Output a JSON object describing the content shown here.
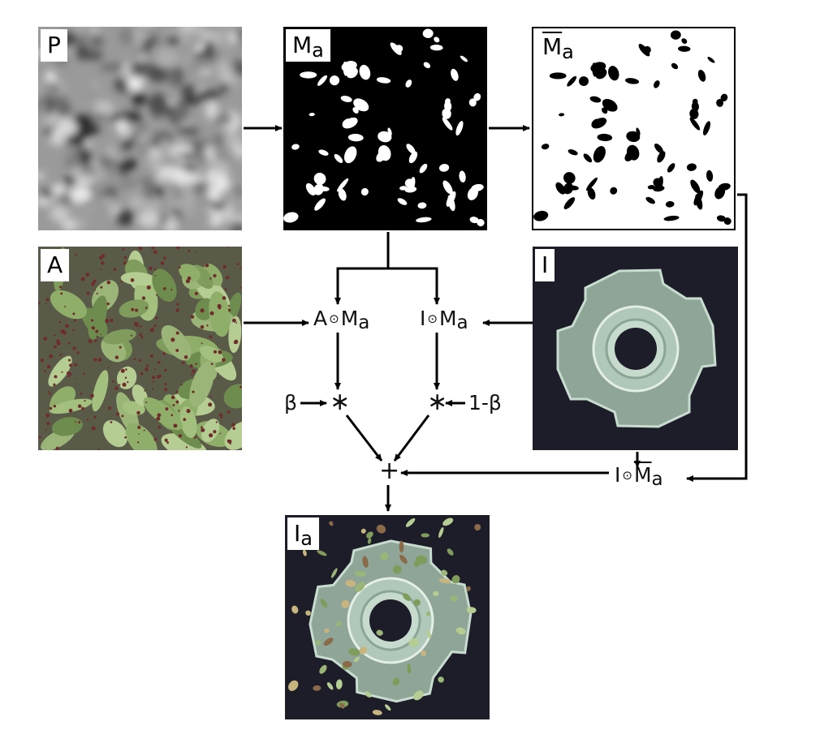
{
  "panels": {
    "p": {
      "label": "P"
    },
    "ma": {
      "label": "M",
      "sub": "a"
    },
    "ma_bar": {
      "label": "M",
      "sub": "a"
    },
    "a": {
      "label": "A"
    },
    "i": {
      "label": "I"
    },
    "ia": {
      "label": "I",
      "sub": "a"
    }
  },
  "nodes": {
    "a_dot_ma": {
      "left": "A",
      "op": "⊙",
      "right": "M",
      "sub": "a"
    },
    "i_dot_ma": {
      "left": "I",
      "op": "⊙",
      "right": "M",
      "sub": "a"
    },
    "i_dot_mabar": {
      "left": "I",
      "op": "⊙",
      "right": "M",
      "sub": "a"
    },
    "beta": "β",
    "one_minus_beta": "1-β",
    "mult_left": "∗",
    "mult_right": "∗",
    "plus": "+"
  },
  "colors": {
    "mask_black": "#000000",
    "mask_white": "#ffffff",
    "dark_background": "#1d1d2a",
    "glass": "#9fb8a8",
    "leaf_green": "#8fae6a",
    "leaf_red": "#6e2d2a"
  }
}
